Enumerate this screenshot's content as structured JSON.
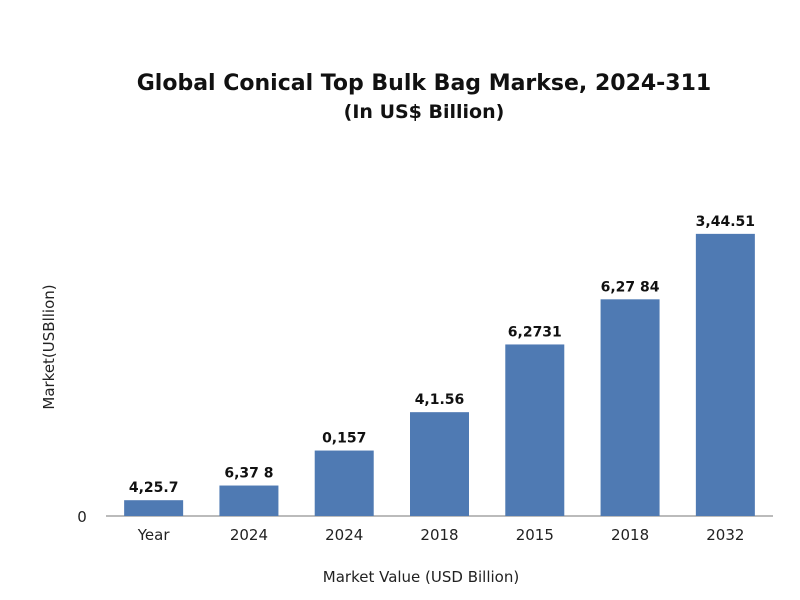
{
  "chart_data": {
    "type": "bar",
    "title": "Global Conical Top Bulk Bag Markse, 2024-311",
    "subtitle": "(In US$ Billion)",
    "xlabel": "Market Value (USD Billion)",
    "ylabel": "Market(USBllion)",
    "y_zero_label": "0",
    "categories": [
      "Year",
      "2024",
      "2024",
      "2018",
      "2015",
      "2018",
      "2032"
    ],
    "values": [
      0.7,
      1.35,
      2.9,
      4.6,
      7.6,
      9.6,
      12.5
    ],
    "data_labels": [
      "4,25.7",
      "6,37 8",
      "0,157",
      "4,1.56",
      "6,2731",
      "6,27 84",
      "3,44.51"
    ],
    "ylim": [
      0,
      14
    ],
    "grid": false,
    "color": "#4f7ab3"
  }
}
